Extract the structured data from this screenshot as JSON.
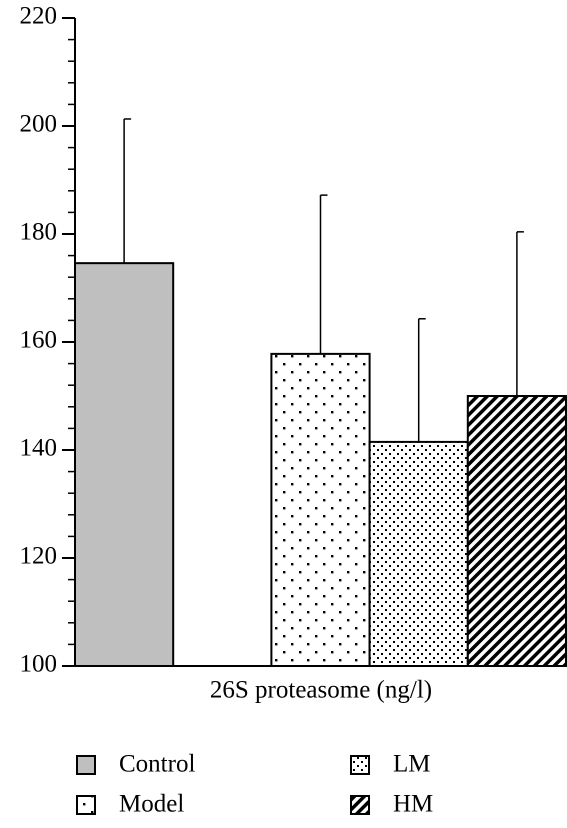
{
  "chart_data": {
    "type": "bar",
    "xlabel": "26S proteasome (ng/l)",
    "series": [
      {
        "name": "Control",
        "color": "#bfbfbf",
        "pattern": "solid",
        "values": [
          174.6
        ],
        "errors": [
          26.7
        ]
      },
      {
        "name": "Model",
        "color": "#000000",
        "pattern": "sparse-dots",
        "values": [
          157.8
        ],
        "errors": [
          29.4
        ]
      },
      {
        "name": "LM",
        "color": "#000000",
        "pattern": "dense-dots",
        "values": [
          141.5
        ],
        "errors": [
          22.8
        ]
      },
      {
        "name": "HM",
        "color": "#000000",
        "pattern": "diagonal-stripes",
        "values": [
          150
        ],
        "errors": [
          30.4
        ]
      }
    ],
    "ylim": [
      100,
      220
    ],
    "yticks": [
      100,
      120,
      140,
      160,
      180,
      200,
      220
    ],
    "legend": "bottom"
  }
}
